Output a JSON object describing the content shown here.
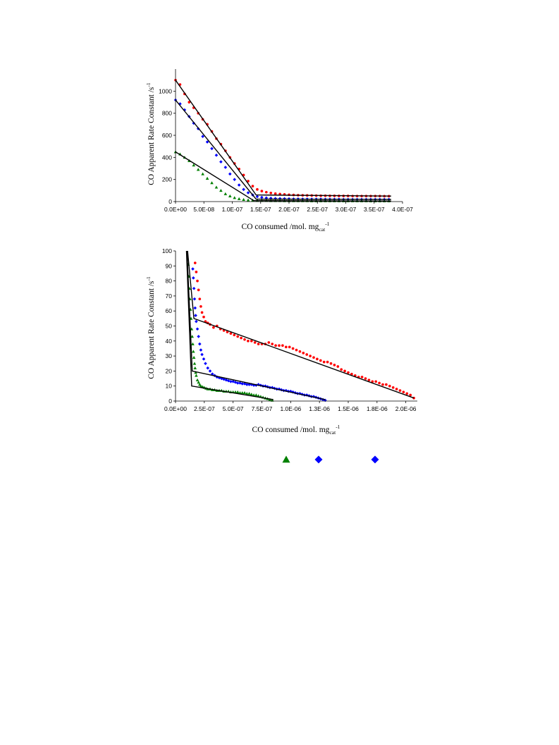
{
  "chart_data": [
    {
      "type": "scatter",
      "title": "",
      "xlabel": "CO consumed /mol. mg",
      "xlabel_sub": "cat",
      "xlabel_sup": "-1",
      "ylabel": "CO Apparent Rate Constant /s",
      "ylabel_sup": "-1",
      "xlim": [
        0,
        4e-07
      ],
      "ylim": [
        0,
        1200
      ],
      "x_ticks": [
        0,
        5e-08,
        1e-07,
        1.5e-07,
        2e-07,
        2.5e-07,
        3e-07,
        3.5e-07,
        4e-07
      ],
      "x_tick_labels": [
        "0.0E+00",
        "5.0E-08",
        "1.0E-07",
        "1.5E-07",
        "2.0E-07",
        "2.5E-07",
        "3.0E-07",
        "3.5E-07",
        "4.0E-07"
      ],
      "y_ticks": [
        0,
        200,
        400,
        600,
        800,
        1000
      ],
      "y_tick_labels": [
        "0",
        "200",
        "400",
        "600",
        "800",
        "1000"
      ],
      "grid": false,
      "series": [
        {
          "marker": "circle",
          "color": "#ff0000",
          "x": [
            0,
            8e-09,
            1.6e-08,
            2.4e-08,
            3.2e-08,
            4e-08,
            4.8e-08,
            5.6e-08,
            6.4e-08,
            7.2e-08,
            8e-08,
            8.8e-08,
            9.6e-08,
            1.04e-07,
            1.12e-07,
            1.2e-07,
            1.28e-07,
            1.36e-07,
            1.44e-07,
            1.52e-07,
            1.6e-07,
            1.68e-07,
            1.76e-07,
            1.84e-07,
            1.92e-07,
            2e-07,
            2.08e-07,
            2.16e-07,
            2.24e-07,
            2.32e-07,
            2.4e-07,
            2.48e-07,
            2.56e-07,
            2.64e-07,
            2.72e-07,
            2.8e-07,
            2.88e-07,
            2.96e-07,
            3.04e-07,
            3.12e-07,
            3.2e-07,
            3.28e-07,
            3.36e-07,
            3.44e-07,
            3.52e-07,
            3.6e-07,
            3.68e-07,
            3.76e-07
          ],
          "y": [
            1100,
            1060,
            975,
            900,
            850,
            800,
            745,
            700,
            635,
            570,
            520,
            460,
            400,
            345,
            295,
            240,
            185,
            140,
            110,
            95,
            85,
            78,
            72,
            68,
            65,
            62,
            60,
            58,
            57,
            56,
            55,
            54,
            53,
            53,
            52,
            52,
            51,
            51,
            51,
            50,
            50,
            50,
            50,
            50,
            50,
            50,
            49,
            49
          ]
        },
        {
          "marker": "diamond",
          "color": "#0000ff",
          "x": [
            0,
            8e-09,
            1.6e-08,
            2.4e-08,
            3.2e-08,
            4e-08,
            4.8e-08,
            5.6e-08,
            6.4e-08,
            7.2e-08,
            8e-08,
            8.8e-08,
            9.6e-08,
            1.04e-07,
            1.12e-07,
            1.2e-07,
            1.28e-07,
            1.36e-07,
            1.44e-07,
            1.52e-07,
            1.6e-07,
            1.68e-07,
            1.76e-07,
            1.84e-07,
            1.92e-07,
            2e-07,
            2.08e-07,
            2.16e-07,
            2.24e-07,
            2.32e-07,
            2.4e-07,
            2.48e-07,
            2.56e-07,
            2.64e-07,
            2.72e-07,
            2.8e-07,
            2.88e-07,
            2.96e-07,
            3.04e-07,
            3.12e-07,
            3.2e-07,
            3.28e-07,
            3.36e-07,
            3.44e-07,
            3.52e-07,
            3.6e-07,
            3.68e-07,
            3.76e-07
          ],
          "y": [
            920,
            885,
            830,
            770,
            710,
            660,
            590,
            540,
            480,
            420,
            360,
            310,
            250,
            200,
            150,
            110,
            80,
            60,
            45,
            38,
            33,
            30,
            28,
            27,
            26,
            25,
            24,
            24,
            23,
            23,
            22,
            22,
            22,
            21,
            21,
            21,
            21,
            20,
            20,
            20,
            20,
            20,
            20,
            20,
            20,
            20,
            20,
            20
          ]
        },
        {
          "marker": "triangle",
          "color": "#008000",
          "x": [
            0,
            8e-09,
            1.6e-08,
            2.4e-08,
            3.2e-08,
            4e-08,
            4.8e-08,
            5.6e-08,
            6.4e-08,
            7.2e-08,
            8e-08,
            8.8e-08,
            9.6e-08,
            1.04e-07,
            1.12e-07,
            1.2e-07,
            1.28e-07,
            1.36e-07,
            1.44e-07,
            1.52e-07,
            1.6e-07,
            1.68e-07,
            1.76e-07,
            1.84e-07,
            1.92e-07,
            2e-07,
            2.08e-07,
            2.16e-07,
            2.24e-07,
            2.32e-07,
            2.4e-07,
            2.48e-07,
            2.56e-07,
            2.64e-07,
            2.72e-07,
            2.8e-07,
            2.88e-07,
            2.96e-07,
            3.04e-07,
            3.12e-07,
            3.2e-07,
            3.28e-07,
            3.36e-07,
            3.44e-07,
            3.52e-07,
            3.6e-07,
            3.68e-07,
            3.76e-07
          ],
          "y": [
            450,
            430,
            400,
            370,
            330,
            290,
            250,
            210,
            170,
            130,
            100,
            70,
            50,
            35,
            25,
            18,
            14,
            12,
            10,
            9,
            9,
            8,
            8,
            8,
            7,
            7,
            7,
            7,
            7,
            7,
            6,
            6,
            6,
            6,
            6,
            6,
            6,
            6,
            6,
            6,
            6,
            6,
            6,
            5,
            5,
            5,
            5,
            5
          ]
        }
      ],
      "fit_lines": [
        {
          "x": [
            0,
            1.42e-07,
            3.8e-07
          ],
          "y": [
            1100,
            60,
            50
          ]
        },
        {
          "x": [
            0,
            1.42e-07,
            3.8e-07
          ],
          "y": [
            920,
            22,
            20
          ]
        },
        {
          "x": [
            0,
            1.38e-07,
            3.8e-07
          ],
          "y": [
            450,
            8,
            5
          ]
        }
      ]
    },
    {
      "type": "scatter",
      "title": "",
      "xlabel": "CO consumed /mol. mg",
      "xlabel_sub": "cat",
      "xlabel_sup": "-1",
      "ylabel": "CO Apparent Rate Constant /s",
      "ylabel_sup": "-1",
      "xlim": [
        0,
        2.1e-06
      ],
      "ylim": [
        0,
        100
      ],
      "x_ticks": [
        0,
        2.5e-07,
        5e-07,
        7.5e-07,
        1e-06,
        1.25e-06,
        1.5e-06,
        1.75e-06,
        2e-06
      ],
      "x_tick_labels": [
        "0.0E+00",
        "2.5E-07",
        "5.0E-07",
        "7.5E-07",
        "1.0E-06",
        "1.3E-06",
        "1.5E-06",
        "1.8E-06",
        "2.0E-06"
      ],
      "y_ticks": [
        0,
        10,
        20,
        30,
        40,
        50,
        60,
        70,
        80,
        90,
        100
      ],
      "y_tick_labels": [
        "0",
        "10",
        "20",
        "30",
        "40",
        "50",
        "60",
        "70",
        "80",
        "90",
        "100"
      ],
      "grid": false,
      "series": [
        {
          "marker": "circle",
          "color": "#ff0000",
          "x": [
            1.7e-07,
            1.8e-07,
            1.9e-07,
            2e-07,
            2.1e-07,
            2.2e-07,
            2.3e-07,
            2.45e-07,
            2.6e-07,
            2.8e-07,
            3e-07,
            3.3e-07,
            3.6e-07,
            3.9e-07,
            4.2e-07,
            4.5e-07,
            4.8e-07,
            5.1e-07,
            5.4e-07,
            5.7e-07,
            6e-07,
            6.3e-07,
            6.6e-07,
            6.9e-07,
            7.2e-07,
            7.5e-07,
            7.8e-07,
            8.1e-07,
            8.4e-07,
            8.7e-07,
            9e-07,
            9.3e-07,
            9.6e-07,
            9.9e-07,
            1.02e-06,
            1.05e-06,
            1.08e-06,
            1.11e-06,
            1.14e-06,
            1.17e-06,
            1.2e-06,
            1.23e-06,
            1.26e-06,
            1.29e-06,
            1.32e-06,
            1.35e-06,
            1.38e-06,
            1.41e-06,
            1.44e-06,
            1.47e-06,
            1.5e-06,
            1.53e-06,
            1.56e-06,
            1.59e-06,
            1.62e-06,
            1.65e-06,
            1.68e-06,
            1.71e-06,
            1.74e-06,
            1.77e-06,
            1.8e-06,
            1.83e-06,
            1.86e-06,
            1.89e-06,
            1.92e-06,
            1.95e-06,
            1.98e-06,
            2.01e-06,
            2.04e-06,
            2.07e-06
          ],
          "y": [
            92,
            86,
            80,
            74,
            68,
            63,
            59,
            56,
            53,
            52,
            51,
            49,
            50,
            48,
            47,
            46,
            45,
            44,
            43,
            42,
            41,
            40,
            40,
            39,
            38,
            38,
            38,
            39,
            38,
            37,
            37,
            37,
            36,
            36,
            35,
            34,
            33,
            32,
            31,
            30,
            29,
            28,
            27,
            26,
            26,
            25,
            24,
            23,
            21,
            20,
            19,
            18,
            17,
            16,
            16,
            15,
            14,
            13,
            13,
            12,
            11,
            11,
            10,
            9,
            8,
            7,
            6,
            5,
            4,
            2
          ]
        },
        {
          "marker": "diamond",
          "color": "#0000ff",
          "x": [
            1.5e-07,
            1.55e-07,
            1.6e-07,
            1.65e-07,
            1.7e-07,
            1.75e-07,
            1.8e-07,
            1.9e-07,
            2e-07,
            2.1e-07,
            2.2e-07,
            2.3e-07,
            2.45e-07,
            2.6e-07,
            2.8e-07,
            3e-07,
            3.2e-07,
            3.4e-07,
            3.6e-07,
            3.8e-07,
            4e-07,
            4.2e-07,
            4.4e-07,
            4.6e-07,
            4.8e-07,
            5e-07,
            5.2e-07,
            5.4e-07,
            5.6e-07,
            5.8e-07,
            6e-07,
            6.2e-07,
            6.4e-07,
            6.6e-07,
            6.8e-07,
            7e-07,
            7.2e-07,
            7.4e-07,
            7.6e-07,
            7.8e-07,
            8e-07,
            8.2e-07,
            8.4e-07,
            8.6e-07,
            8.8e-07,
            9e-07,
            9.2e-07,
            9.4e-07,
            9.6e-07,
            9.8e-07,
            1e-06,
            1.02e-06,
            1.04e-06,
            1.06e-06,
            1.08e-06,
            1.1e-06,
            1.12e-06,
            1.14e-06,
            1.16e-06,
            1.18e-06,
            1.2e-06,
            1.22e-06,
            1.24e-06,
            1.26e-06,
            1.28e-06,
            1.3e-06
          ],
          "y": [
            88,
            82,
            75,
            68,
            62,
            57,
            53,
            48,
            43,
            38,
            34,
            31,
            28,
            25,
            22,
            20,
            18,
            17,
            16,
            15.5,
            15,
            14.5,
            14,
            13.5,
            13,
            13,
            12.5,
            12,
            12,
            11.5,
            11.5,
            11,
            11,
            11,
            10.5,
            10.5,
            11,
            10.5,
            10,
            10,
            9.5,
            9,
            9,
            8.5,
            8,
            8,
            7.5,
            7,
            7,
            6.5,
            6.5,
            6,
            5.5,
            5,
            5,
            4.5,
            4,
            4,
            3.5,
            3,
            3,
            2.5,
            2,
            1.5,
            1,
            0.5
          ]
        },
        {
          "marker": "triangle",
          "color": "#008000",
          "x": [
            1.1e-07,
            1.15e-07,
            1.2e-07,
            1.25e-07,
            1.3e-07,
            1.35e-07,
            1.4e-07,
            1.45e-07,
            1.5e-07,
            1.55e-07,
            1.6e-07,
            1.65e-07,
            1.7e-07,
            1.75e-07,
            1.8e-07,
            1.9e-07,
            2e-07,
            2.1e-07,
            2.2e-07,
            2.35e-07,
            2.5e-07,
            2.65e-07,
            2.8e-07,
            3e-07,
            3.2e-07,
            3.4e-07,
            3.6e-07,
            3.8e-07,
            4e-07,
            4.2e-07,
            4.4e-07,
            4.6e-07,
            4.8e-07,
            5e-07,
            5.2e-07,
            5.4e-07,
            5.6e-07,
            5.8e-07,
            6e-07,
            6.2e-07,
            6.4e-07,
            6.6e-07,
            6.8e-07,
            7e-07,
            7.2e-07,
            7.4e-07,
            7.6e-07,
            7.8e-07,
            8e-07,
            8.2e-07,
            8.4e-07
          ],
          "y": [
            91,
            83,
            75,
            68,
            61,
            55,
            48,
            43,
            38,
            33,
            29,
            25,
            22,
            19,
            17,
            14,
            12.5,
            11,
            10,
            9.5,
            9,
            8.5,
            8,
            8,
            7.5,
            7.5,
            7,
            7,
            7,
            6.5,
            6.5,
            6.5,
            6,
            6,
            6,
            6,
            5.5,
            5.5,
            5.5,
            5,
            5,
            4.5,
            4,
            4,
            3.5,
            3,
            2.5,
            2,
            1.5,
            1,
            0.5
          ]
        }
      ],
      "fit_lines": [
        {
          "x": [
            1.05e-07,
            1.6e-07,
            2.07e-06
          ],
          "y": [
            100,
            55,
            2
          ]
        },
        {
          "x": [
            1e-07,
            1.45e-07,
            1.3e-06
          ],
          "y": [
            100,
            20,
            1
          ]
        },
        {
          "x": [
            9.5e-08,
            1.4e-07,
            8.5e-07
          ],
          "y": [
            100,
            10,
            1
          ]
        }
      ]
    }
  ],
  "legend": [
    {
      "marker": "triangle",
      "color": "#008000"
    },
    {
      "marker": "diamond",
      "color": "#0000ff"
    },
    {
      "marker": "diamond",
      "color": "#0000ff"
    }
  ]
}
